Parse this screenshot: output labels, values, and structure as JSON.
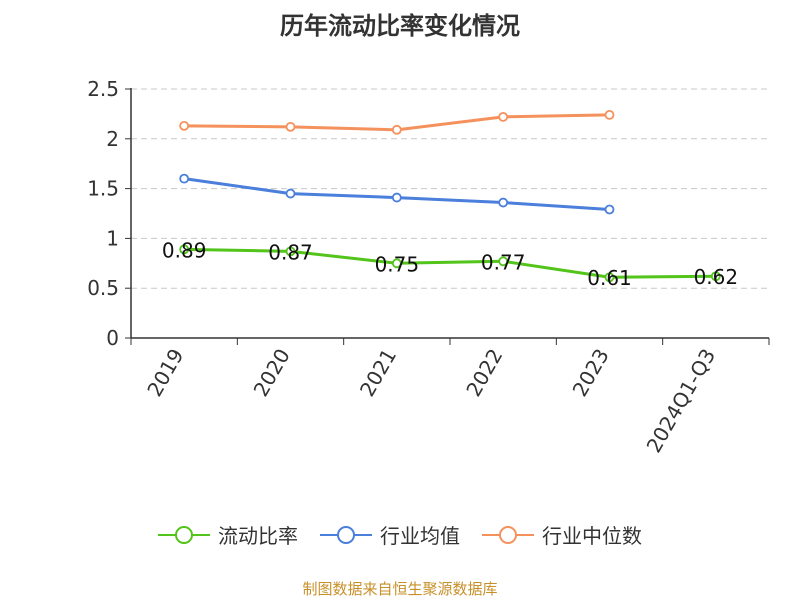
{
  "chart_data": {
    "type": "line",
    "title": "历年流动比率变化情况",
    "categories": [
      "2019",
      "2020",
      "2021",
      "2022",
      "2023",
      "2024Q1-Q3"
    ],
    "ylim": [
      0,
      2.5
    ],
    "yticks": [
      "0",
      "0.5",
      "1",
      "1.5",
      "2",
      "2.5"
    ],
    "grid": true,
    "legend_position": "bottom",
    "series": [
      {
        "name": "流动比率",
        "color": "#52c41a",
        "values": [
          0.89,
          0.87,
          0.75,
          0.77,
          0.61,
          0.62
        ],
        "labels": [
          "0.89",
          "0.87",
          "0.75",
          "0.77",
          "0.61",
          "0.62"
        ]
      },
      {
        "name": "行业均值",
        "color": "#4a7fdb",
        "values": [
          1.6,
          1.45,
          1.41,
          1.36,
          1.29,
          null
        ]
      },
      {
        "name": "行业中位数",
        "color": "#f5915c",
        "values": [
          2.13,
          2.12,
          2.09,
          2.22,
          2.24,
          null
        ]
      }
    ]
  },
  "source": "制图数据来自恒生聚源数据库"
}
